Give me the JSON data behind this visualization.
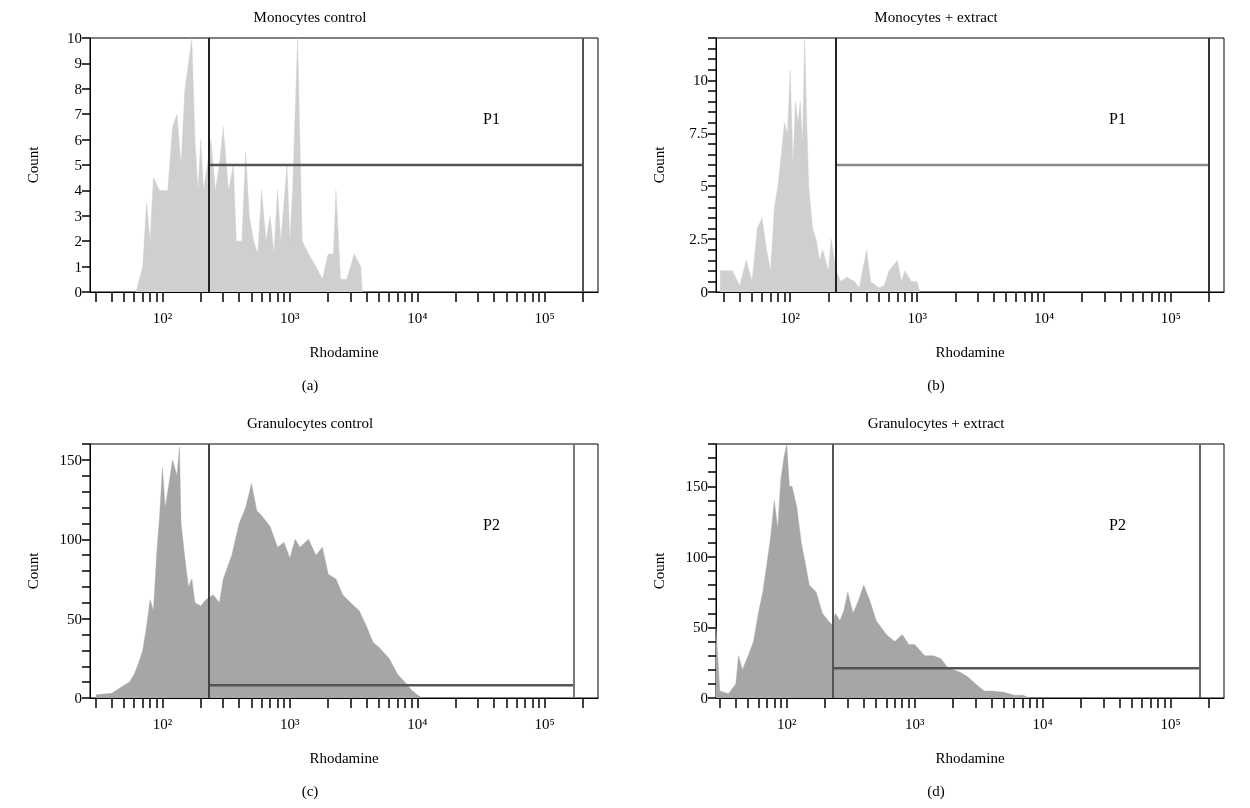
{
  "chart_data": [
    {
      "type": "area",
      "title": "Monocytes control",
      "xlabel": "Rhodamine",
      "ylabel": "Count",
      "log": "x",
      "marker": "none",
      "xlim": [
        27,
        262000
      ],
      "xticks": [
        {
          "value": 30,
          "label": null
        },
        {
          "value": 40,
          "label": null
        },
        {
          "value": 50,
          "label": null
        },
        {
          "value": 60,
          "label": null
        },
        {
          "value": 70,
          "label": null
        },
        {
          "value": 80,
          "label": null
        },
        {
          "value": 90,
          "label": null
        },
        {
          "value": 100,
          "label": "10²"
        },
        {
          "value": 200,
          "label": null
        },
        {
          "value": 300,
          "label": null
        },
        {
          "value": 400,
          "label": null
        },
        {
          "value": 500,
          "label": null
        },
        {
          "value": 600,
          "label": null
        },
        {
          "value": 700,
          "label": null
        },
        {
          "value": 800,
          "label": null
        },
        {
          "value": 900,
          "label": null
        },
        {
          "value": 1000,
          "label": "10³"
        },
        {
          "value": 2000,
          "label": null
        },
        {
          "value": 3000,
          "label": null
        },
        {
          "value": 4000,
          "label": null
        },
        {
          "value": 5000,
          "label": null
        },
        {
          "value": 6000,
          "label": null
        },
        {
          "value": 7000,
          "label": null
        },
        {
          "value": 8000,
          "label": null
        },
        {
          "value": 9000,
          "label": null
        },
        {
          "value": 10000,
          "label": "10⁴"
        },
        {
          "value": 20000,
          "label": null
        },
        {
          "value": 30000,
          "label": null
        },
        {
          "value": 40000,
          "label": null
        },
        {
          "value": 50000,
          "label": null
        },
        {
          "value": 60000,
          "label": null
        },
        {
          "value": 70000,
          "label": null
        },
        {
          "value": 80000,
          "label": null
        },
        {
          "value": 90000,
          "label": null
        },
        {
          "value": 100000,
          "label": "10⁵"
        },
        {
          "value": 200000,
          "label": null
        }
      ],
      "ylim": [
        0,
        10
      ],
      "yticks": [
        0,
        1,
        2,
        3,
        4,
        5,
        6,
        7,
        8,
        9,
        10
      ],
      "series": [
        {
          "color": "#cfcfcf",
          "x": [
            62,
            70,
            75,
            80,
            85,
            95,
            110,
            120,
            130,
            140,
            150,
            160,
            170,
            180,
            190,
            200,
            210,
            225,
            240,
            260,
            280,
            300,
            330,
            360,
            380,
            420,
            450,
            480,
            520,
            560,
            600,
            650,
            700,
            750,
            800,
            850,
            950,
            1000,
            1050,
            1150,
            1250,
            1400,
            1600,
            1800,
            2000,
            2200,
            2300,
            2500,
            2800,
            3200,
            3600,
            3700
          ],
          "values": [
            0,
            1,
            3.5,
            2,
            4.5,
            4,
            4,
            6.5,
            7,
            5,
            8,
            9,
            10,
            6,
            4,
            6,
            4,
            5,
            6,
            4,
            5,
            6.5,
            4,
            5,
            2,
            2,
            5.5,
            3,
            2,
            1.5,
            4,
            2,
            3,
            1.5,
            4,
            2,
            5,
            2,
            4,
            10,
            2,
            1.5,
            1,
            0.5,
            1.5,
            1.5,
            4,
            0.5,
            0.5,
            1.5,
            1,
            0
          ]
        },
        {
          "type": "line",
          "color": "#555555",
          "x": [
            230,
            200000
          ],
          "values": [
            5,
            5
          ]
        }
      ],
      "ref_lines": [
        {
          "axis": "x",
          "value": 230,
          "color": "#222222"
        },
        {
          "axis": "x",
          "value": 200000,
          "color": "#555555"
        }
      ],
      "annotations": [
        "P1",
        "(a)"
      ]
    },
    {
      "type": "area",
      "title": "Monocytes + extract",
      "xlabel": "Rhodamine",
      "ylabel": "Count",
      "log": "x",
      "marker": "none",
      "xlim": [
        26,
        262000
      ],
      "xticks": [
        {
          "value": 30,
          "label": null
        },
        {
          "value": 40,
          "label": null
        },
        {
          "value": 50,
          "label": null
        },
        {
          "value": 60,
          "label": null
        },
        {
          "value": 70,
          "label": null
        },
        {
          "value": 80,
          "label": null
        },
        {
          "value": 90,
          "label": null
        },
        {
          "value": 100,
          "label": "10²"
        },
        {
          "value": 200,
          "label": null
        },
        {
          "value": 300,
          "label": null
        },
        {
          "value": 400,
          "label": null
        },
        {
          "value": 500,
          "label": null
        },
        {
          "value": 600,
          "label": null
        },
        {
          "value": 700,
          "label": null
        },
        {
          "value": 800,
          "label": null
        },
        {
          "value": 900,
          "label": null
        },
        {
          "value": 1000,
          "label": "10³"
        },
        {
          "value": 2000,
          "label": null
        },
        {
          "value": 3000,
          "label": null
        },
        {
          "value": 4000,
          "label": null
        },
        {
          "value": 5000,
          "label": null
        },
        {
          "value": 6000,
          "label": null
        },
        {
          "value": 7000,
          "label": null
        },
        {
          "value": 8000,
          "label": null
        },
        {
          "value": 9000,
          "label": null
        },
        {
          "value": 10000,
          "label": "10⁴"
        },
        {
          "value": 20000,
          "label": null
        },
        {
          "value": 30000,
          "label": null
        },
        {
          "value": 40000,
          "label": null
        },
        {
          "value": 50000,
          "label": null
        },
        {
          "value": 60000,
          "label": null
        },
        {
          "value": 70000,
          "label": null
        },
        {
          "value": 80000,
          "label": null
        },
        {
          "value": 90000,
          "label": null
        },
        {
          "value": 100000,
          "label": "10⁵"
        },
        {
          "value": 200000,
          "label": null
        }
      ],
      "ylim": [
        0,
        12
      ],
      "yticks": [
        0,
        {
          "value": 0.5,
          "label": null
        },
        {
          "value": 1,
          "label": null
        },
        {
          "value": 1.5,
          "label": null
        },
        {
          "value": 2,
          "label": null
        },
        2.5,
        {
          "value": 3,
          "label": null
        },
        {
          "value": 3.5,
          "label": null
        },
        {
          "value": 4,
          "label": null
        },
        {
          "value": 4.5,
          "label": null
        },
        5,
        {
          "value": 5.5,
          "label": null
        },
        {
          "value": 6,
          "label": null
        },
        {
          "value": 6.5,
          "label": null
        },
        {
          "value": 7,
          "label": null
        },
        7.5,
        {
          "value": 8,
          "label": null
        },
        {
          "value": 8.5,
          "label": null
        },
        {
          "value": 9,
          "label": null
        },
        {
          "value": 9.5,
          "label": null
        },
        10,
        {
          "value": 10.5,
          "label": null
        },
        {
          "value": 11,
          "label": null
        },
        {
          "value": 11.5,
          "label": null
        },
        {
          "value": 12,
          "label": null
        }
      ],
      "series": [
        {
          "color": "#cfcfcf",
          "x": [
            28,
            35,
            40,
            45,
            50,
            55,
            60,
            65,
            70,
            75,
            80,
            85,
            90,
            95,
            100,
            105,
            110,
            115,
            120,
            125,
            130,
            135,
            140,
            150,
            160,
            170,
            180,
            200,
            210,
            230,
            250,
            280,
            320,
            350,
            400,
            430,
            500,
            550,
            600,
            700,
            750,
            800,
            900,
            1000,
            1050
          ],
          "values": [
            1,
            1,
            0.3,
            1.5,
            0.5,
            3,
            3.5,
            2,
            1,
            4,
            5,
            6.5,
            8,
            7.5,
            10.5,
            6,
            9,
            8,
            9,
            7,
            12,
            8,
            5,
            3,
            2.5,
            1.5,
            2,
            1,
            2.5,
            1,
            0.5,
            0.7,
            0.5,
            0.2,
            2,
            0.5,
            0.2,
            0.3,
            1,
            1.5,
            0.5,
            1,
            0.5,
            0.5,
            0
          ]
        },
        {
          "type": "line",
          "color": "#888888",
          "x": [
            230,
            200000
          ],
          "values": [
            6,
            6
          ]
        }
      ],
      "ref_lines": [
        {
          "axis": "x",
          "value": 230,
          "color": "#222222"
        },
        {
          "axis": "x",
          "value": 200000,
          "color": "#333333"
        }
      ],
      "annotations": [
        "P1",
        "(b)"
      ]
    },
    {
      "type": "area",
      "title": "Granulocytes control",
      "xlabel": "Rhodamine",
      "ylabel": "Count",
      "log": "x",
      "marker": "none",
      "xlim": [
        27,
        262000
      ],
      "xticks": [
        {
          "value": 30,
          "label": null
        },
        {
          "value": 40,
          "label": null
        },
        {
          "value": 50,
          "label": null
        },
        {
          "value": 60,
          "label": null
        },
        {
          "value": 70,
          "label": null
        },
        {
          "value": 80,
          "label": null
        },
        {
          "value": 90,
          "label": null
        },
        {
          "value": 100,
          "label": "10²"
        },
        {
          "value": 200,
          "label": null
        },
        {
          "value": 300,
          "label": null
        },
        {
          "value": 400,
          "label": null
        },
        {
          "value": 500,
          "label": null
        },
        {
          "value": 600,
          "label": null
        },
        {
          "value": 700,
          "label": null
        },
        {
          "value": 800,
          "label": null
        },
        {
          "value": 900,
          "label": null
        },
        {
          "value": 1000,
          "label": "10³"
        },
        {
          "value": 2000,
          "label": null
        },
        {
          "value": 3000,
          "label": null
        },
        {
          "value": 4000,
          "label": null
        },
        {
          "value": 5000,
          "label": null
        },
        {
          "value": 6000,
          "label": null
        },
        {
          "value": 7000,
          "label": null
        },
        {
          "value": 8000,
          "label": null
        },
        {
          "value": 9000,
          "label": null
        },
        {
          "value": 10000,
          "label": "10⁴"
        },
        {
          "value": 20000,
          "label": null
        },
        {
          "value": 30000,
          "label": null
        },
        {
          "value": 40000,
          "label": null
        },
        {
          "value": 50000,
          "label": null
        },
        {
          "value": 60000,
          "label": null
        },
        {
          "value": 70000,
          "label": null
        },
        {
          "value": 80000,
          "label": null
        },
        {
          "value": 90000,
          "label": null
        },
        {
          "value": 100000,
          "label": "10⁵"
        },
        {
          "value": 200000,
          "label": null
        }
      ],
      "ylim": [
        0,
        160
      ],
      "yticks": [
        0,
        {
          "value": 10,
          "label": null
        },
        {
          "value": 20,
          "label": null
        },
        {
          "value": 30,
          "label": null
        },
        {
          "value": 40,
          "label": null
        },
        50,
        {
          "value": 60,
          "label": null
        },
        {
          "value": 70,
          "label": null
        },
        {
          "value": 80,
          "label": null
        },
        {
          "value": 90,
          "label": null
        },
        100,
        {
          "value": 110,
          "label": null
        },
        {
          "value": 120,
          "label": null
        },
        {
          "value": 130,
          "label": null
        },
        {
          "value": 140,
          "label": null
        },
        150,
        {
          "value": 160,
          "label": null
        }
      ],
      "series": [
        {
          "color": "#a6a6a6",
          "x": [
            30,
            40,
            50,
            55,
            60,
            65,
            70,
            75,
            80,
            85,
            90,
            95,
            100,
            105,
            110,
            120,
            130,
            136,
            140,
            150,
            160,
            170,
            180,
            200,
            220,
            250,
            280,
            300,
            350,
            400,
            450,
            500,
            550,
            600,
            700,
            800,
            900,
            1000,
            1100,
            1200,
            1400,
            1600,
            1800,
            2000,
            2300,
            2600,
            3000,
            3500,
            4000,
            4500,
            5000,
            6000,
            7000,
            8000,
            9000,
            10000,
            11000
          ],
          "values": [
            2,
            3,
            8,
            10,
            15,
            22,
            30,
            45,
            62,
            55,
            90,
            115,
            145,
            120,
            130,
            150,
            140,
            158,
            110,
            88,
            70,
            75,
            60,
            58,
            62,
            65,
            60,
            75,
            90,
            110,
            120,
            135,
            118,
            115,
            108,
            95,
            98,
            88,
            100,
            95,
            100,
            90,
            95,
            78,
            75,
            65,
            60,
            55,
            45,
            35,
            32,
            25,
            15,
            10,
            5,
            2,
            0
          ]
        },
        {
          "type": "line",
          "color": "#555555",
          "x": [
            230,
            170000
          ],
          "values": [
            8,
            8
          ]
        }
      ],
      "ref_lines": [
        {
          "axis": "x",
          "value": 230,
          "color": "#444444"
        },
        {
          "axis": "x",
          "value": 170000,
          "color": "#777777"
        }
      ],
      "annotations": [
        "P2",
        "(c)"
      ]
    },
    {
      "type": "area",
      "title": "Granulocytes + extract",
      "xlabel": "Rhodamine",
      "ylabel": "Count",
      "log": "x",
      "marker": "none",
      "xlim": [
        28,
        262000
      ],
      "xticks": [
        {
          "value": 30,
          "label": null
        },
        {
          "value": 40,
          "label": null
        },
        {
          "value": 50,
          "label": null
        },
        {
          "value": 60,
          "label": null
        },
        {
          "value": 70,
          "label": null
        },
        {
          "value": 80,
          "label": null
        },
        {
          "value": 90,
          "label": null
        },
        {
          "value": 100,
          "label": "10²"
        },
        {
          "value": 200,
          "label": null
        },
        {
          "value": 300,
          "label": null
        },
        {
          "value": 400,
          "label": null
        },
        {
          "value": 500,
          "label": null
        },
        {
          "value": 600,
          "label": null
        },
        {
          "value": 700,
          "label": null
        },
        {
          "value": 800,
          "label": null
        },
        {
          "value": 900,
          "label": null
        },
        {
          "value": 1000,
          "label": "10³"
        },
        {
          "value": 2000,
          "label": null
        },
        {
          "value": 3000,
          "label": null
        },
        {
          "value": 4000,
          "label": null
        },
        {
          "value": 5000,
          "label": null
        },
        {
          "value": 6000,
          "label": null
        },
        {
          "value": 7000,
          "label": null
        },
        {
          "value": 8000,
          "label": null
        },
        {
          "value": 9000,
          "label": null
        },
        {
          "value": 10000,
          "label": "10⁴"
        },
        {
          "value": 20000,
          "label": null
        },
        {
          "value": 30000,
          "label": null
        },
        {
          "value": 40000,
          "label": null
        },
        {
          "value": 50000,
          "label": null
        },
        {
          "value": 60000,
          "label": null
        },
        {
          "value": 70000,
          "label": null
        },
        {
          "value": 80000,
          "label": null
        },
        {
          "value": 90000,
          "label": null
        },
        {
          "value": 100000,
          "label": "10⁵"
        },
        {
          "value": 200000,
          "label": null
        }
      ],
      "ylim": [
        0,
        180
      ],
      "yticks": [
        0,
        {
          "value": 10,
          "label": null
        },
        {
          "value": 20,
          "label": null
        },
        {
          "value": 30,
          "label": null
        },
        {
          "value": 40,
          "label": null
        },
        50,
        {
          "value": 60,
          "label": null
        },
        {
          "value": 70,
          "label": null
        },
        {
          "value": 80,
          "label": null
        },
        {
          "value": 90,
          "label": null
        },
        100,
        {
          "value": 110,
          "label": null
        },
        {
          "value": 120,
          "label": null
        },
        {
          "value": 130,
          "label": null
        },
        {
          "value": 140,
          "label": null
        },
        150,
        {
          "value": 160,
          "label": null
        },
        {
          "value": 170,
          "label": null
        },
        {
          "value": 180,
          "label": null
        }
      ],
      "series": [
        {
          "color": "#a6a6a6",
          "x": [
            28,
            30,
            35,
            40,
            42,
            45,
            50,
            55,
            60,
            65,
            70,
            75,
            80,
            85,
            90,
            95,
            100,
            105,
            110,
            120,
            130,
            140,
            150,
            170,
            190,
            210,
            225,
            240,
            260,
            280,
            300,
            330,
            360,
            400,
            450,
            500,
            600,
            700,
            800,
            900,
            1000,
            1200,
            1400,
            1600,
            1800,
            2000,
            2300,
            2600,
            3000,
            3500,
            4000,
            5000,
            6000,
            7000,
            8000
          ],
          "values": [
            50,
            5,
            3,
            10,
            30,
            20,
            30,
            40,
            60,
            75,
            95,
            115,
            140,
            120,
            155,
            170,
            180,
            150,
            150,
            135,
            110,
            95,
            80,
            75,
            60,
            55,
            52,
            60,
            55,
            62,
            75,
            60,
            68,
            80,
            68,
            55,
            45,
            40,
            45,
            38,
            38,
            30,
            30,
            28,
            22,
            20,
            18,
            15,
            10,
            5,
            5,
            4,
            2,
            2,
            0
          ]
        },
        {
          "type": "line",
          "color": "#555555",
          "x": [
            230,
            170000
          ],
          "values": [
            21,
            21
          ]
        }
      ],
      "ref_lines": [
        {
          "axis": "x",
          "value": 230,
          "color": "#555555"
        },
        {
          "axis": "x",
          "value": 170000,
          "color": "#666666"
        }
      ],
      "annotations": [
        "P2",
        "(d)"
      ]
    }
  ]
}
